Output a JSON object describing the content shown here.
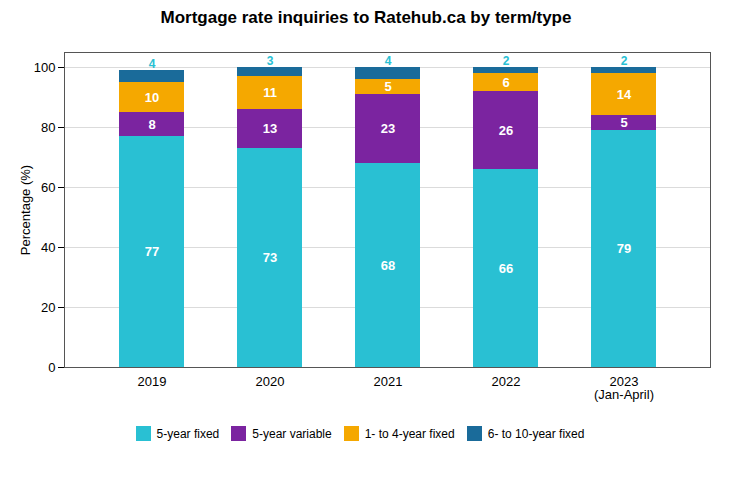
{
  "chart_data": {
    "type": "bar",
    "stacked": true,
    "title": "Mortgage rate inquiries to Ratehub.ca by term/type",
    "ylabel": "Percentage (%)",
    "categories": [
      "2019",
      "2020",
      "2021",
      "2022",
      "2023\n(Jan-April)"
    ],
    "series": [
      {
        "name": "5-year fixed",
        "color": "#29C0D3",
        "values": [
          77,
          73,
          68,
          66,
          79
        ]
      },
      {
        "name": "5-year variable",
        "color": "#7B24A0",
        "values": [
          8,
          13,
          23,
          26,
          5
        ]
      },
      {
        "name": "1- to 4-year fixed",
        "color": "#F5A800",
        "values": [
          10,
          11,
          5,
          6,
          14
        ]
      },
      {
        "name": "6- to 10-year fixed",
        "color": "#1A6B9A",
        "values": [
          4,
          3,
          4,
          2,
          2
        ]
      }
    ],
    "ylim": [
      0,
      105
    ],
    "yticks": [
      0,
      20,
      40,
      60,
      80,
      100
    ],
    "grid": true,
    "legend": "bottom",
    "data_labels": true
  }
}
